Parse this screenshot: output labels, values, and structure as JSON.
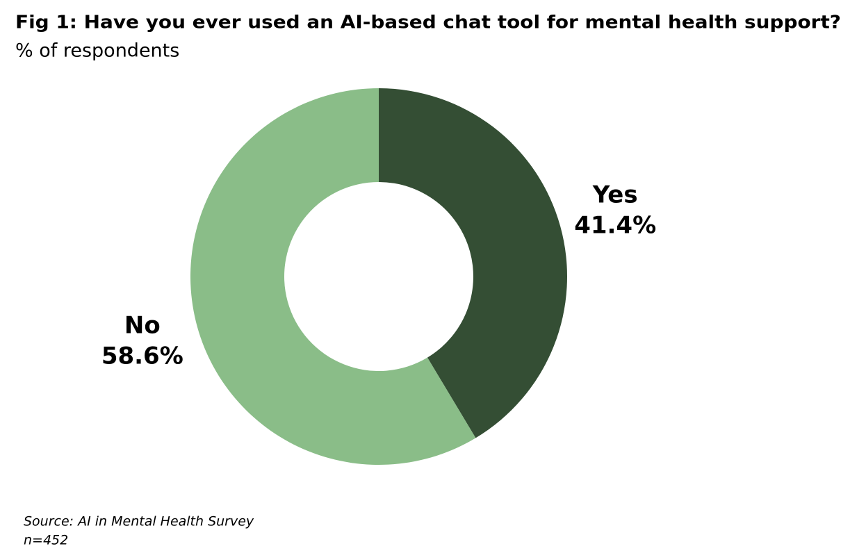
{
  "chart_data": {
    "type": "donut",
    "title": "Fig 1: Have you ever used an AI-based chat tool for mental health support?",
    "subtitle": "% of respondents",
    "categories": [
      "Yes",
      "No"
    ],
    "values": [
      41.4,
      58.6
    ],
    "value_labels": [
      "41.4%",
      "58.6%"
    ],
    "colors": [
      "#344e34",
      "#8abd88"
    ],
    "source": "Source: AI in Mental Health Survey",
    "note": "n=452"
  }
}
